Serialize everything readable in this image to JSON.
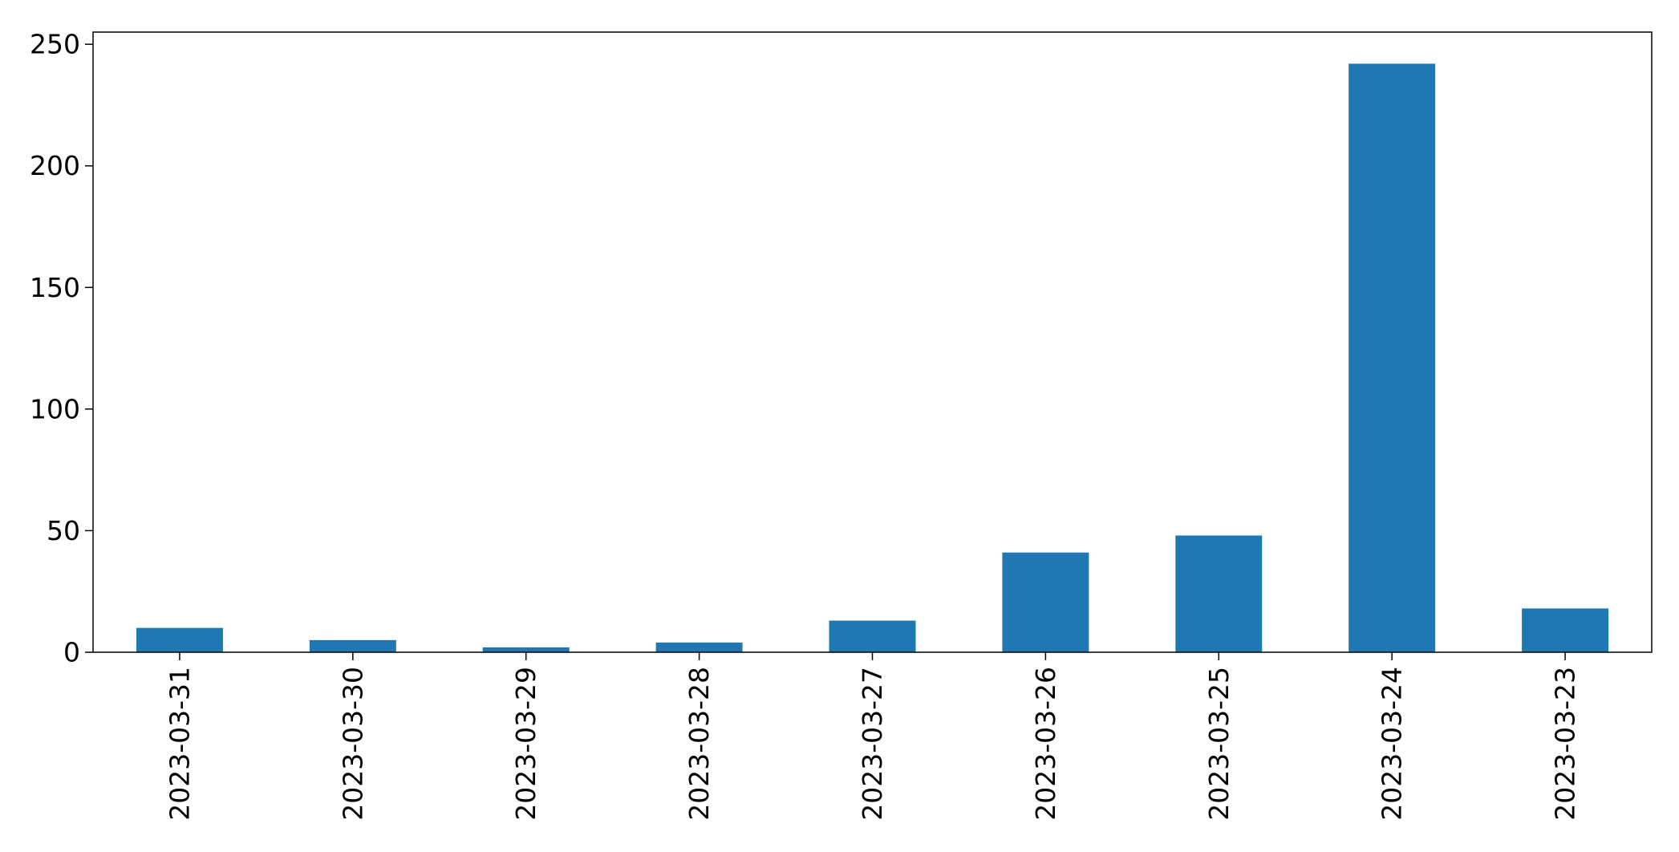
{
  "chart_data": {
    "type": "bar",
    "title": "",
    "xlabel": "",
    "ylabel": "",
    "categories": [
      "2023-03-31",
      "2023-03-30",
      "2023-03-29",
      "2023-03-28",
      "2023-03-27",
      "2023-03-26",
      "2023-03-25",
      "2023-03-24",
      "2023-03-23"
    ],
    "values": [
      10,
      5,
      2,
      4,
      13,
      41,
      48,
      242,
      18
    ],
    "ylim": [
      0,
      255
    ],
    "yticks": [
      0,
      50,
      100,
      150,
      200,
      250
    ],
    "bar_color": "#1f77b4",
    "grid": false,
    "legend": "none"
  }
}
